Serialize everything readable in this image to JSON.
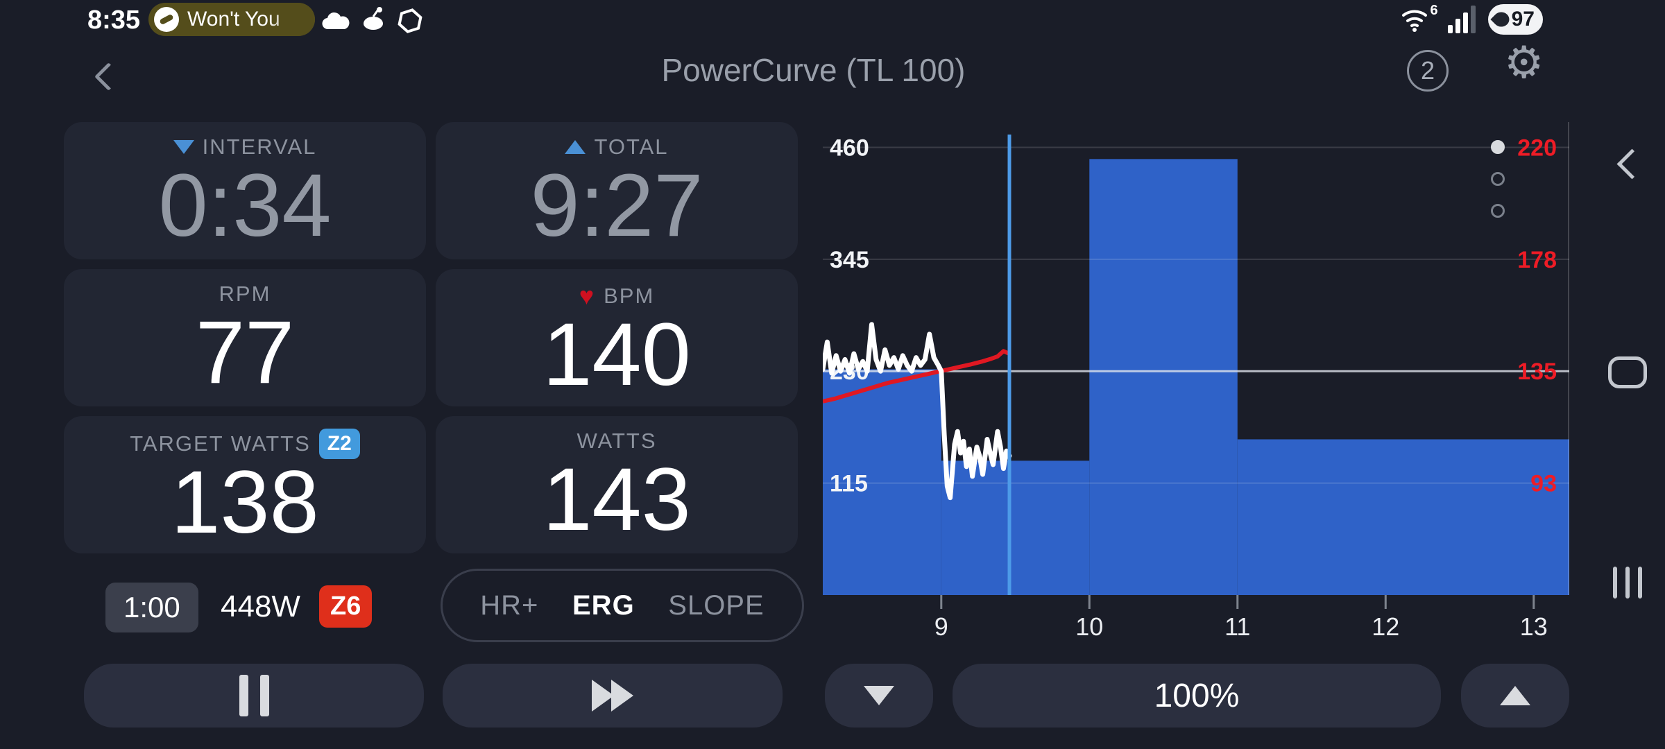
{
  "status_bar": {
    "time": "8:35",
    "notification": {
      "title": "Won't You"
    },
    "wifi_label": "6",
    "battery_percent": "97"
  },
  "header": {
    "title": "PowerCurve (TL 100)",
    "device_count": "2"
  },
  "metrics": {
    "interval": {
      "label": "INTERVAL",
      "value": "0:34"
    },
    "total": {
      "label": "TOTAL",
      "value": "9:27"
    },
    "rpm": {
      "label": "RPM",
      "value": "77"
    },
    "bpm": {
      "label": "BPM",
      "value": "140"
    },
    "target_watts": {
      "label": "TARGET WATTS",
      "zone": "Z2",
      "value": "138"
    },
    "watts": {
      "label": "WATTS",
      "value": "143"
    }
  },
  "next_interval": {
    "duration": "1:00",
    "power": "448W",
    "zone": "Z6"
  },
  "modes": {
    "options": [
      "HR+",
      "ERG",
      "SLOPE"
    ],
    "selected": "ERG"
  },
  "intensity": {
    "value": "100%"
  },
  "colors": {
    "bar_blue": "#2f62c8",
    "cursor_blue": "#4d9be8",
    "hr_red": "#e01822",
    "axis_red": "#ee1c26",
    "power_line_white": "#ffffff",
    "accent_blue": "#4a90d5",
    "zone2_bg": "#429add",
    "zone6_bg": "#df2f1b"
  },
  "chart_data": {
    "type": "area",
    "x_axis": {
      "unit": "minutes",
      "min": 8.2,
      "max": 13.24,
      "ticks": [
        9,
        10,
        11,
        12,
        13
      ]
    },
    "power_axis": {
      "ticks": [
        460,
        345,
        230,
        115
      ],
      "top_value": 486,
      "bottom_value": 0,
      "highlight_tick": 230
    },
    "hr_axis": {
      "ticks": [
        220,
        178,
        135,
        93
      ],
      "top_value": 229.6,
      "bottom_value": 50.8
    },
    "cursor_min": 9.46,
    "segments": [
      {
        "start_min": 8.2,
        "end_min": 9.0,
        "watts": 232
      },
      {
        "start_min": 9.0,
        "end_min": 10.0,
        "watts": 138
      },
      {
        "start_min": 10.0,
        "end_min": 11.0,
        "watts": 448
      },
      {
        "start_min": 11.0,
        "end_min": 13.24,
        "watts": 160
      }
    ],
    "power_line": [
      [
        8.2,
        232
      ],
      [
        8.23,
        260
      ],
      [
        8.26,
        228
      ],
      [
        8.29,
        246
      ],
      [
        8.32,
        230
      ],
      [
        8.35,
        242
      ],
      [
        8.38,
        228
      ],
      [
        8.41,
        248
      ],
      [
        8.44,
        232
      ],
      [
        8.47,
        240
      ],
      [
        8.5,
        230
      ],
      [
        8.53,
        278
      ],
      [
        8.56,
        242
      ],
      [
        8.59,
        230
      ],
      [
        8.62,
        252
      ],
      [
        8.65,
        236
      ],
      [
        8.68,
        244
      ],
      [
        8.71,
        232
      ],
      [
        8.74,
        246
      ],
      [
        8.77,
        236
      ],
      [
        8.8,
        230
      ],
      [
        8.83,
        244
      ],
      [
        8.86,
        236
      ],
      [
        8.89,
        242
      ],
      [
        8.92,
        268
      ],
      [
        8.95,
        244
      ],
      [
        8.98,
        236
      ],
      [
        9.0,
        230
      ],
      [
        9.02,
        165
      ],
      [
        9.04,
        112
      ],
      [
        9.06,
        100
      ],
      [
        9.09,
        155
      ],
      [
        9.11,
        168
      ],
      [
        9.13,
        146
      ],
      [
        9.15,
        158
      ],
      [
        9.17,
        132
      ],
      [
        9.19,
        150
      ],
      [
        9.21,
        122
      ],
      [
        9.24,
        152
      ],
      [
        9.26,
        142
      ],
      [
        9.28,
        124
      ],
      [
        9.31,
        160
      ],
      [
        9.33,
        146
      ],
      [
        9.35,
        134
      ],
      [
        9.38,
        168
      ],
      [
        9.4,
        152
      ],
      [
        9.42,
        130
      ],
      [
        9.44,
        148
      ],
      [
        9.46,
        143
      ]
    ],
    "hr_line": [
      [
        8.2,
        124
      ],
      [
        8.28,
        125
      ],
      [
        8.34,
        126
      ],
      [
        8.4,
        127
      ],
      [
        8.46,
        128
      ],
      [
        8.52,
        129
      ],
      [
        8.58,
        130
      ],
      [
        8.64,
        131
      ],
      [
        8.72,
        132
      ],
      [
        8.8,
        133
      ],
      [
        8.88,
        134
      ],
      [
        8.96,
        135
      ],
      [
        9.04,
        136
      ],
      [
        9.12,
        137
      ],
      [
        9.2,
        138
      ],
      [
        9.27,
        139
      ],
      [
        9.33,
        140
      ],
      [
        9.38,
        141
      ],
      [
        9.42,
        143
      ],
      [
        9.46,
        142
      ]
    ],
    "pager_dots": {
      "count": 3,
      "active_index": 0
    }
  }
}
